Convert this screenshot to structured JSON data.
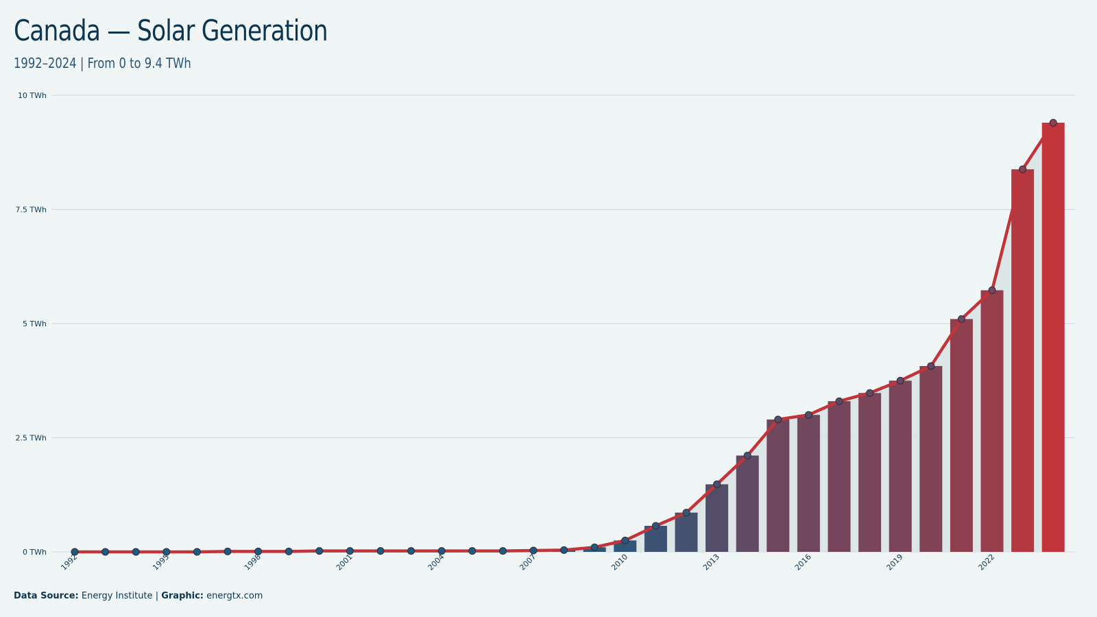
{
  "header": {
    "title": "Canada — Solar Generation",
    "subtitle": "1992–2024 | From 0 to 9.4 TWh"
  },
  "footer": {
    "source_label": "Data Source:",
    "source_value": "Energy Institute",
    "separator": "|",
    "graphic_label": "Graphic:",
    "graphic_value": "energtx.com"
  },
  "colors": {
    "background": "#f0f6f6",
    "bar_start": "#1f5a80",
    "bar_end": "#c0343a",
    "line": "#c0343a",
    "area": "#d9e4e6",
    "grid": "#d4dcdf",
    "text": "#0d3550"
  },
  "chart_data": {
    "type": "bar",
    "ylabel_unit": "TWh",
    "ylim": [
      0,
      10
    ],
    "y_ticks": [
      0,
      2.5,
      5,
      7.5,
      10
    ],
    "y_tick_labels": [
      "0 TWh",
      "2.5 TWh",
      "5 TWh",
      "7.5 TWh",
      "10 TWh"
    ],
    "x_tick_labels": [
      "1992",
      "1995",
      "1998",
      "2001",
      "2004",
      "2007",
      "2010",
      "2013",
      "2016",
      "2019",
      "2022"
    ],
    "grid": true,
    "overlay_line": true,
    "categories": [
      "1992",
      "1993",
      "1994",
      "1995",
      "1996",
      "1997",
      "1998",
      "1999",
      "2000",
      "2001",
      "2002",
      "2003",
      "2004",
      "2005",
      "2006",
      "2007",
      "2008",
      "2009",
      "2010",
      "2011",
      "2012",
      "2013",
      "2014",
      "2015",
      "2016",
      "2017",
      "2018",
      "2019",
      "2020",
      "2021",
      "2022",
      "2023",
      "2024"
    ],
    "values": [
      0.0,
      0.0,
      0.0,
      0.0,
      0.0,
      0.01,
      0.01,
      0.01,
      0.02,
      0.02,
      0.02,
      0.02,
      0.02,
      0.02,
      0.02,
      0.03,
      0.04,
      0.1,
      0.25,
      0.57,
      0.86,
      1.48,
      2.11,
      2.9,
      3.0,
      3.3,
      3.48,
      3.75,
      4.07,
      5.1,
      5.73,
      8.38,
      9.4
    ]
  }
}
